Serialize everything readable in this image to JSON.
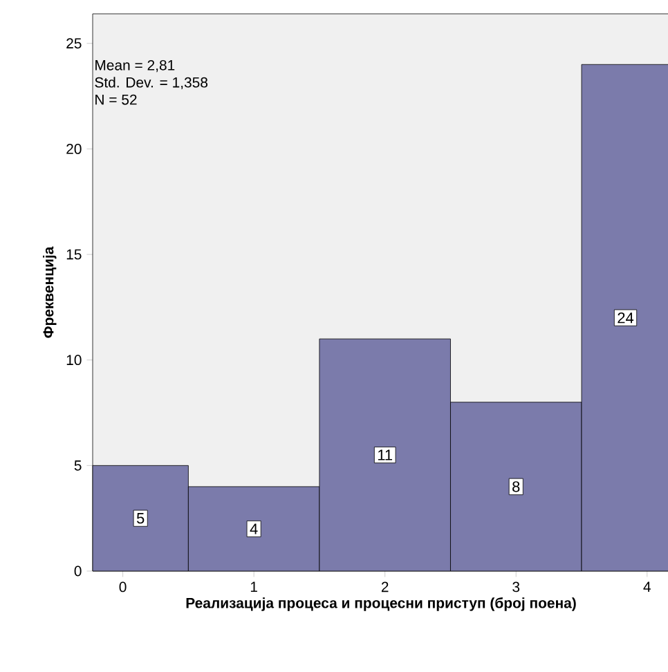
{
  "chart_data": {
    "type": "histogram",
    "bins": [
      -0.23,
      0.5,
      1.5,
      2.5,
      3.5,
      4.17
    ],
    "values": [
      5,
      4,
      11,
      8,
      24
    ],
    "color": "#7b7bab",
    "xlim": [
      -0.23,
      4.17
    ],
    "xticks": [
      0,
      1,
      2,
      3,
      4
    ],
    "ylim": [
      0,
      26.4
    ],
    "yticks": [
      0,
      5,
      10,
      15,
      20,
      25
    ],
    "xlabel": "Реализација процеса и процесни приступ (број поена)",
    "ylabel": "Фреквенција",
    "data_labels": true,
    "annotations": [
      "Mean = 2,81",
      "Std. Dev. = 1,358",
      "N = 52"
    ]
  }
}
